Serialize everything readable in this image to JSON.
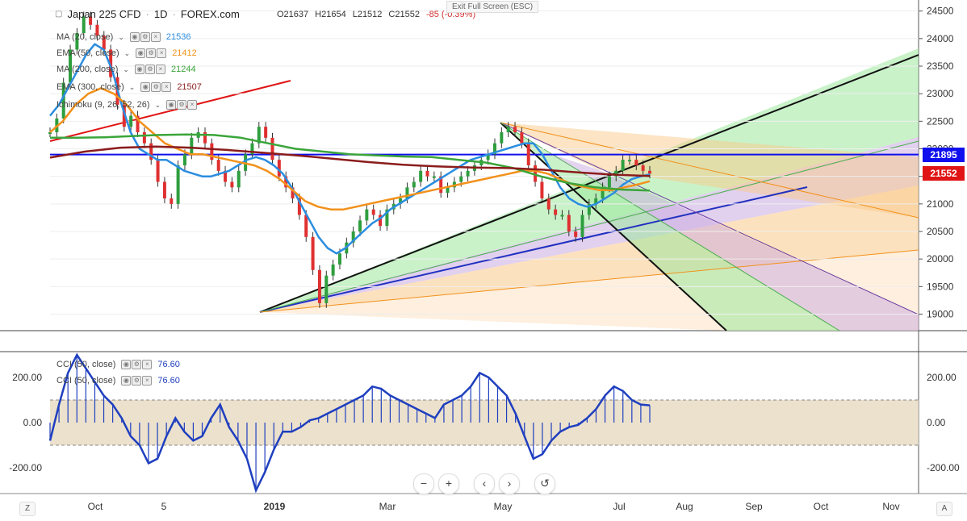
{
  "header": {
    "symbol": "Japan 225 CFD",
    "interval": "1D",
    "source": "FOREX.com",
    "open": "O21637",
    "high": "H21654",
    "low": "L21512",
    "close": "C21552",
    "change": "-85 (-0.39%)",
    "exit_fullscreen": "Exit Full Screen (ESC)"
  },
  "legend": [
    {
      "name": "MA (20, close)",
      "value": "21536",
      "color": "#2b8de0"
    },
    {
      "name": "EMA (50, close)",
      "value": "21412",
      "color": "#f2911b"
    },
    {
      "name": "MA (200, close)",
      "value": "21244",
      "color": "#3aa53a"
    },
    {
      "name": "EMA (300, close)",
      "value": "21507",
      "color": "#8b1c1c"
    },
    {
      "name": "Ichimoku (9, 26, 52, 26)",
      "value": "",
      "color": "#2b8de0"
    }
  ],
  "cci_legend": [
    {
      "name": "CCI (50, close)",
      "value": "76.60",
      "color": "#1f3fbf"
    },
    {
      "name": "CCI (50, close)",
      "value": "76.60",
      "color": "#1f3fbf"
    }
  ],
  "price_tags": [
    {
      "value": "21895",
      "color": "#1010ee"
    },
    {
      "value": "21552",
      "color": "#e01414"
    }
  ],
  "nav_buttons": [
    {
      "name": "zoom-out-button",
      "label": "−"
    },
    {
      "name": "zoom-in-button",
      "label": "+"
    },
    {
      "name": "scroll-left-button",
      "label": "‹"
    },
    {
      "name": "scroll-right-button",
      "label": "›"
    },
    {
      "name": "reset-chart-button",
      "label": "↺"
    }
  ],
  "corner_buttons": {
    "left": "Z",
    "right": "A"
  },
  "chart_data": [
    {
      "type": "line",
      "title": "Japan 225 CFD · 1D · FOREX.com",
      "ylim": [
        18700,
        24700
      ],
      "y_ticks": [
        24500,
        24000,
        23500,
        23000,
        22500,
        22000,
        21500,
        21000,
        20500,
        20000,
        19500,
        19000
      ],
      "x_labels": [
        "Oct",
        "5",
        "2019",
        "Mar",
        "May",
        "Jul",
        "Aug",
        "Sep",
        "Oct",
        "Nov"
      ],
      "horizontal_levels": [
        21895
      ],
      "last_price": 21552,
      "series": [
        {
          "name": "Close",
          "color": "#333333",
          "values": [
            22300,
            22550,
            23200,
            23800,
            24100,
            24400,
            24250,
            24050,
            23800,
            23300,
            22800,
            22400,
            22600,
            22300,
            22100,
            21800,
            21400,
            21100,
            21000,
            21700,
            21900,
            22200,
            22300,
            22100,
            21800,
            21600,
            21400,
            21300,
            21600,
            21900,
            22100,
            22400,
            22200,
            21800,
            21500,
            21300,
            21100,
            20800,
            20400,
            19800,
            19200,
            19700,
            19900,
            20100,
            20300,
            20500,
            20700,
            20900,
            20800,
            20600,
            20900,
            21000,
            21100,
            21300,
            21400,
            21600,
            21500,
            21500,
            21200,
            21300,
            21400,
            21500,
            21600,
            21700,
            21800,
            21900,
            22100,
            22300,
            22400,
            22300,
            22100,
            21700,
            21400,
            21100,
            20900,
            20800,
            20800,
            20500,
            20400,
            20800,
            21000,
            21100,
            21300,
            21500,
            21600,
            21800,
            21800,
            21700,
            21600,
            21552
          ]
        },
        {
          "name": "MA (20, close)",
          "color": "#2b8de0",
          "values": [
            22600,
            22800,
            23100,
            23400,
            23700,
            23900,
            23800,
            23400,
            22800,
            22300,
            22000,
            21900,
            21800,
            21800,
            21700,
            21600,
            21550,
            21500,
            21500,
            21550,
            21600,
            21700,
            21800,
            21850,
            21800,
            21700,
            21550,
            21300,
            21000,
            20700,
            20400,
            20200,
            20100,
            20200,
            20350,
            20500,
            20650,
            20750,
            20900,
            21000,
            21100,
            21200,
            21300,
            21400,
            21500,
            21600,
            21700,
            21800,
            21850,
            21900,
            21950,
            22000,
            22050,
            22100,
            22100,
            21900,
            21600,
            21300,
            21100,
            21000,
            20950,
            21000,
            21100,
            21200,
            21350,
            21450,
            21500,
            21536
          ]
        },
        {
          "name": "EMA (50, close)",
          "color": "#f2911b",
          "values": [
            22300,
            22500,
            22800,
            23000,
            23100,
            23000,
            22800,
            22500,
            22300,
            22100,
            22000,
            21900,
            21900,
            21850,
            21800,
            21750,
            21700,
            21600,
            21450,
            21250,
            21050,
            20950,
            20900,
            20900,
            20950,
            21000,
            21050,
            21100,
            21150,
            21200,
            21250,
            21300,
            21350,
            21400,
            21450,
            21500,
            21550,
            21600,
            21600,
            21550,
            21450,
            21350,
            21300,
            21250,
            21250,
            21300,
            21350,
            21412
          ]
        },
        {
          "name": "MA (200, close)",
          "color": "#3aa53a",
          "values": [
            22200,
            22200,
            22210,
            22230,
            22250,
            22260,
            22250,
            22200,
            22100,
            22000,
            21950,
            21900,
            21880,
            21860,
            21850,
            21800,
            21750,
            21650,
            21500,
            21380,
            21300,
            21260,
            21244
          ]
        },
        {
          "name": "EMA (300, close)",
          "color": "#8b1c1c",
          "values": [
            21840,
            21950,
            22020,
            22040,
            22020,
            21980,
            21930,
            21880,
            21820,
            21760,
            21710,
            21680,
            21660,
            21650,
            21620,
            21570,
            21530,
            21507
          ]
        }
      ]
    },
    {
      "type": "area",
      "title": "CCI (50, close)",
      "ylim": [
        -300,
        300
      ],
      "y_ticks": [
        200,
        0,
        -200
      ],
      "band": [
        -100,
        100
      ],
      "series": [
        {
          "name": "CCI (50, close)",
          "color": "#1f3fbf",
          "values": [
            -80,
            80,
            220,
            300,
            240,
            180,
            120,
            80,
            20,
            -60,
            -100,
            -180,
            -160,
            -60,
            20,
            -40,
            -80,
            -60,
            20,
            80,
            -20,
            -80,
            -160,
            -300,
            -220,
            -120,
            -40,
            -40,
            -20,
            10,
            20,
            40,
            60,
            80,
            100,
            120,
            160,
            150,
            120,
            100,
            80,
            60,
            40,
            20,
            80,
            100,
            120,
            160,
            220,
            200,
            160,
            120,
            40,
            -60,
            -160,
            -140,
            -80,
            -40,
            -20,
            -10,
            20,
            60,
            120,
            160,
            140,
            100,
            80,
            76.6
          ]
        }
      ]
    }
  ]
}
